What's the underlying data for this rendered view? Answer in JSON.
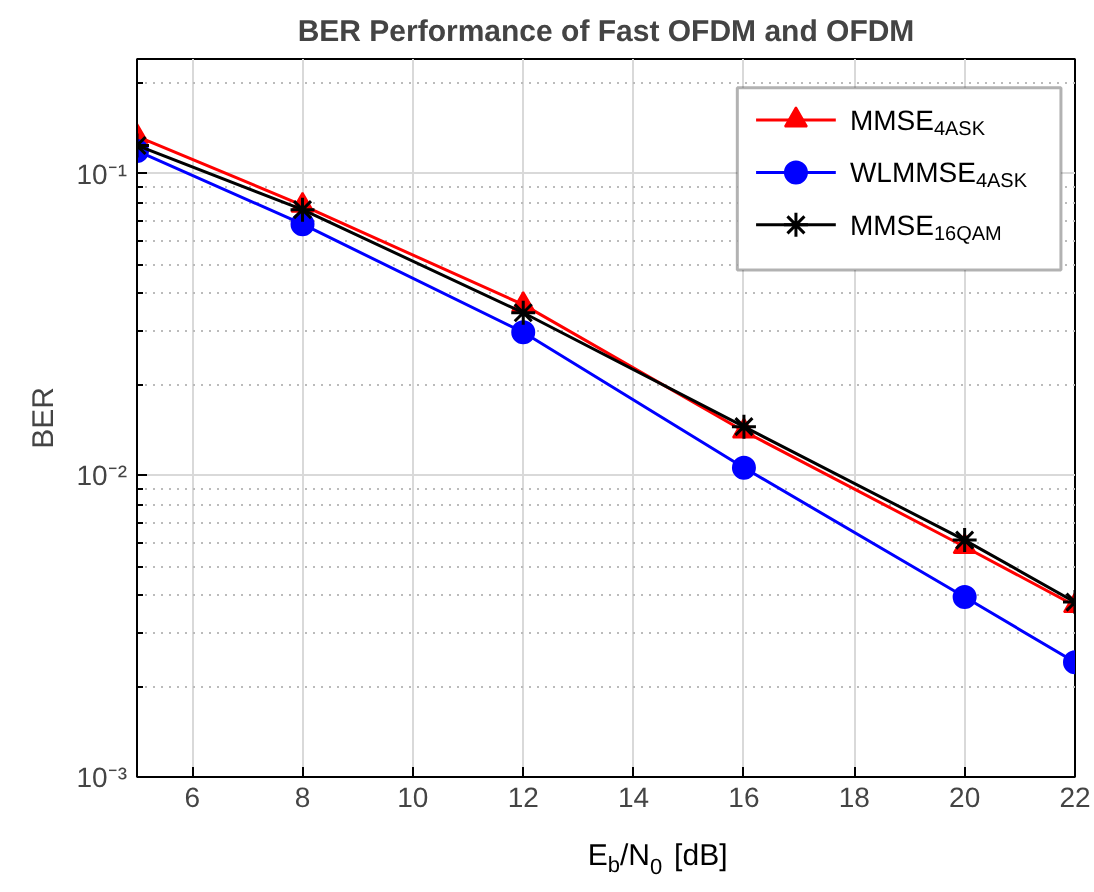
{
  "chart_data": {
    "type": "line",
    "title": "BER Performance of Fast OFDM and OFDM",
    "xlabel": "E$_{b}$/N$_{0}$ [dB]",
    "ylabel": "BER",
    "x": [
      5,
      8,
      12,
      16,
      20,
      22
    ],
    "series": [
      {
        "name": "MMSE$_{4ASK}$",
        "color": "#ff0000",
        "marker": "triangle",
        "values": [
          0.133,
          0.0785,
          0.0368,
          0.014,
          0.0058,
          0.0037
        ]
      },
      {
        "name": "WLMMSE$_{4ASK}$",
        "color": "#0000ff",
        "marker": "circle",
        "values": [
          0.119,
          0.068,
          0.0298,
          0.0106,
          0.00395,
          0.0024
        ]
      },
      {
        "name": "MMSE$_{16QAM}$",
        "color": "#000000",
        "marker": "cross",
        "values": [
          0.124,
          0.076,
          0.0346,
          0.0145,
          0.0061,
          0.0038
        ]
      }
    ],
    "log": "y",
    "xlim": [
      5,
      22
    ],
    "xticks": [
      6,
      8,
      10,
      12,
      14,
      16,
      18,
      20,
      22
    ],
    "ylim": [
      0.001,
      0.24
    ],
    "yticks": [
      {
        "value": 0.001,
        "label": "10⁻³"
      },
      {
        "value": 0.01,
        "label": "10⁻²"
      },
      {
        "value": 0.1,
        "label": "10⁻¹"
      }
    ],
    "grid": true,
    "legend": "top right",
    "line_style": "solid"
  }
}
